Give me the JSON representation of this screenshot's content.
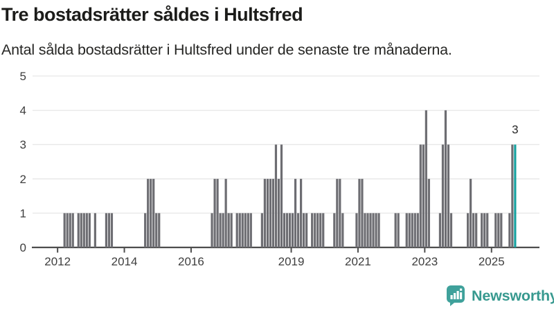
{
  "header": {
    "title": "Tre bostadsrätter såldes i Hultsfred",
    "subtitle": "Antal sålda bostadsrätter i Hultsfred under de senaste tre månaderna."
  },
  "chart_data": {
    "type": "bar",
    "title": "Tre bostadsrätter såldes i Hultsfred",
    "subtitle": "Antal sålda bostadsrätter i Hultsfred under de senaste tre månaderna.",
    "ylabel": "",
    "xlabel": "",
    "ylim": [
      0,
      5
    ],
    "y_ticks": [
      0,
      1,
      2,
      3,
      4,
      5
    ],
    "x_tick_years": [
      2012,
      2014,
      2016,
      2019,
      2021,
      2023,
      2025
    ],
    "grid": "horizontal",
    "bar_color": "#6d6d72",
    "highlight_color": "#17a2a0",
    "annotation": "3",
    "annotation_value": 3,
    "series": [
      {
        "name": "Antal sålda bostadsrätter",
        "start_month": "2011-04",
        "end_month": "2025-09",
        "values": [
          0,
          0,
          0,
          0,
          0,
          0,
          0,
          0,
          0,
          0,
          0,
          1,
          1,
          1,
          1,
          0,
          1,
          1,
          1,
          1,
          1,
          0,
          1,
          0,
          0,
          0,
          1,
          1,
          1,
          0,
          0,
          0,
          0,
          0,
          0,
          0,
          0,
          0,
          0,
          0,
          1,
          2,
          2,
          2,
          1,
          1,
          0,
          0,
          0,
          0,
          0,
          0,
          0,
          0,
          0,
          0,
          0,
          0,
          0,
          0,
          0,
          0,
          0,
          0,
          1,
          2,
          2,
          1,
          1,
          2,
          1,
          1,
          0,
          1,
          1,
          1,
          1,
          1,
          1,
          0,
          0,
          0,
          1,
          2,
          2,
          2,
          2,
          3,
          2,
          3,
          1,
          1,
          1,
          1,
          2,
          1,
          2,
          1,
          1,
          0,
          1,
          1,
          1,
          1,
          1,
          0,
          0,
          0,
          1,
          2,
          2,
          1,
          0,
          0,
          0,
          0,
          1,
          2,
          2,
          1,
          1,
          1,
          1,
          1,
          1,
          0,
          0,
          0,
          0,
          0,
          1,
          1,
          0,
          0,
          1,
          1,
          1,
          1,
          1,
          3,
          3,
          4,
          2,
          0,
          0,
          0,
          1,
          3,
          4,
          3,
          1,
          0,
          0,
          0,
          0,
          0,
          1,
          2,
          1,
          1,
          0,
          1,
          1,
          1,
          0,
          0,
          1,
          1,
          1,
          0,
          0,
          1,
          3,
          3
        ]
      }
    ]
  },
  "footer": {
    "brand": "Newsworthy"
  },
  "colors": {
    "bar_gray": "#6d6d72",
    "bar_teal": "#17a2a0",
    "brand_teal": "#3fa19b",
    "gridline": "#e7e7e7",
    "axis_line": "#4d4d4d",
    "text_dark": "#1c1c1a"
  }
}
